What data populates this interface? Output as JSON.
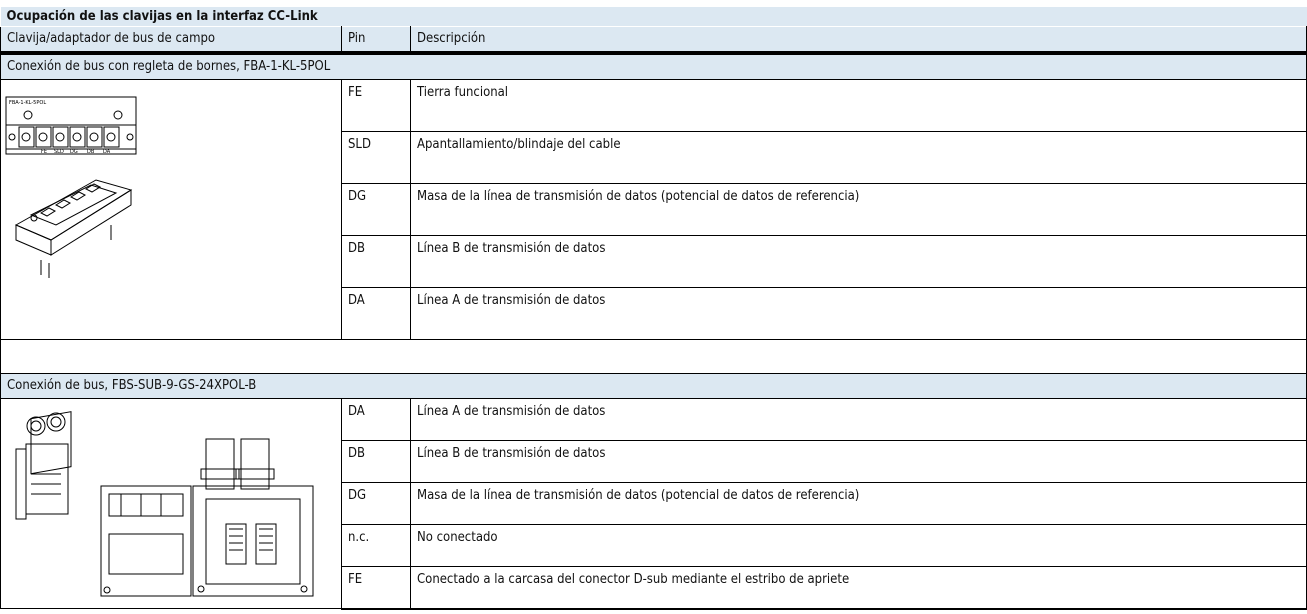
{
  "title": "Ocupación de las clavijas en la interfaz CC-Link",
  "header": [
    "Clavija/adaptador de bus de campo",
    "Pin",
    "Descripción"
  ],
  "sections": [
    {
      "title": "Conexión de bus con regleta de bornes, FBA-1-KL-5POL",
      "image_labels": [
        "FBA-1-KL-5POL",
        "FE",
        "SLD",
        "DG",
        "DB",
        "DA"
      ],
      "rows": [
        [
          "FE",
          "Tierra funcional"
        ],
        [
          "SLD",
          "Apantallamiento/blindaje del cable"
        ],
        [
          "DG",
          "Masa de la línea de transmisión de datos (potencial de datos de referencia)"
        ],
        [
          "DB",
          "Línea B de transmisión de datos"
        ],
        [
          "DA",
          "Línea A de transmisión de datos"
        ]
      ]
    },
    {
      "title": "Conexión de bus, FBS-SUB-9-GS-24XPOL-B",
      "rows": [
        [
          "DA",
          "Línea A de transmisión de datos"
        ],
        [
          "DB",
          "Línea B de transmisión de datos"
        ],
        [
          "DG",
          "Masa de la línea de transmisión de datos (potencial de datos de referencia)"
        ],
        [
          "n.c.",
          "No conectado"
        ],
        [
          "FE",
          "Conectado a la carcasa del conector D-sub mediante el estribo de apriete"
        ]
      ]
    }
  ]
}
